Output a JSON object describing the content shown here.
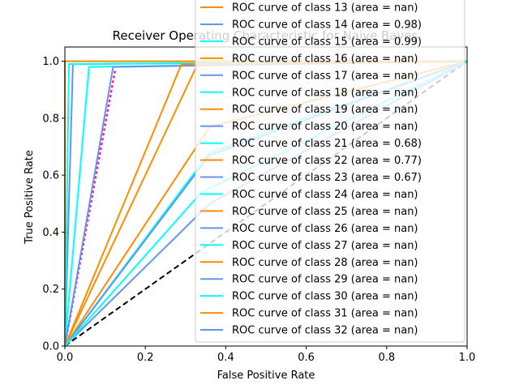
{
  "chart_data": {
    "type": "line",
    "title": "Receiver Operating Characteristic for Naive Bayes",
    "xlabel": "False Positive Rate",
    "ylabel": "True Positive Rate",
    "xlim": [
      0.0,
      1.0
    ],
    "ylim": [
      0.0,
      1.05
    ],
    "x_ticks": [
      "0.0",
      "0.2",
      "0.4",
      "0.6",
      "0.8",
      "1.0"
    ],
    "y_ticks": [
      "0.0",
      "0.2",
      "0.4",
      "0.6",
      "0.8",
      "1.0"
    ],
    "legend_position": "right, overlapping plot",
    "colors": {
      "aqua": "#00ffff",
      "darkorange": "#ff8c00",
      "cornflowerblue": "#6495ed",
      "deeppink": "#ff1493",
      "navy": "#000080"
    },
    "series": [
      {
        "color": "#000000",
        "dashed": true,
        "x": [
          0,
          1
        ],
        "y": [
          0,
          1
        ]
      },
      {
        "color": "#ff1493",
        "dotted": true,
        "x": [
          0.0,
          0.125
        ],
        "y": [
          0.0,
          0.97
        ]
      },
      {
        "color": "#00ffff",
        "x": [
          0.0,
          0.0,
          1.0
        ],
        "y": [
          0.0,
          1.0,
          1.0
        ]
      },
      {
        "color": "#ff8c00",
        "x": [
          0.0,
          0.0,
          1.0
        ],
        "y": [
          0.0,
          1.0,
          1.0
        ]
      },
      {
        "color": "#6495ed",
        "x": [
          0.0,
          0.02,
          1.0
        ],
        "y": [
          0.0,
          0.99,
          1.0
        ]
      },
      {
        "color": "#00ffff",
        "x": [
          0.0,
          0.01,
          1.0
        ],
        "y": [
          0.0,
          0.99,
          1.0
        ]
      },
      {
        "color": "#00ffff",
        "x": [
          0.0,
          0.06,
          1.0
        ],
        "y": [
          0.0,
          0.98,
          1.0
        ]
      },
      {
        "color": "#6495ed",
        "x": [
          0.0,
          0.12,
          1.0
        ],
        "y": [
          0.0,
          0.98,
          1.0
        ]
      },
      {
        "color": "#ff8c00",
        "x": [
          0.0,
          0.29,
          1.0
        ],
        "y": [
          0.0,
          0.99,
          1.0
        ]
      },
      {
        "color": "#ff8c00",
        "x": [
          0.0,
          0.33,
          1.0
        ],
        "y": [
          0.0,
          0.99,
          1.0
        ]
      },
      {
        "color": "#6495ed",
        "x": [
          0.0,
          0.36,
          1.0
        ],
        "y": [
          0.0,
          0.5,
          1.0
        ]
      },
      {
        "color": "#ff8c00",
        "x": [
          0.0,
          0.36,
          1.0
        ],
        "y": [
          0.0,
          0.77,
          1.0
        ]
      },
      {
        "color": "#00ffff",
        "x": [
          0.0,
          0.36,
          1.0
        ],
        "y": [
          0.0,
          0.68,
          1.0
        ]
      },
      {
        "color": "#6495ed",
        "x": [
          0.0,
          0.36,
          1.0
        ],
        "y": [
          0.0,
          0.67,
          1.0
        ]
      },
      {
        "color": "#00ffff",
        "x": [
          0.0,
          0.34,
          1.0
        ],
        "y": [
          0.0,
          0.54,
          1.0
        ]
      }
    ],
    "legend": [
      {
        "label": "ROC curve of class 13 (area = nan)",
        "color": "#ff8c00"
      },
      {
        "label": "ROC curve of class 14 (area = 0.98)",
        "color": "#6495ed"
      },
      {
        "label": "ROC curve of class 15 (area = 0.99)",
        "color": "#00ffff"
      },
      {
        "label": "ROC curve of class 16 (area = nan)",
        "color": "#ff8c00"
      },
      {
        "label": "ROC curve of class 17 (area = nan)",
        "color": "#6495ed"
      },
      {
        "label": "ROC curve of class 18 (area = nan)",
        "color": "#00ffff"
      },
      {
        "label": "ROC curve of class 19 (area = nan)",
        "color": "#ff8c00"
      },
      {
        "label": "ROC curve of class 20 (area = nan)",
        "color": "#6495ed"
      },
      {
        "label": "ROC curve of class 21 (area = 0.68)",
        "color": "#00ffff"
      },
      {
        "label": "ROC curve of class 22 (area = 0.77)",
        "color": "#ff8c00"
      },
      {
        "label": "ROC curve of class 23 (area = 0.67)",
        "color": "#6495ed"
      },
      {
        "label": "ROC curve of class 24 (area = nan)",
        "color": "#00ffff"
      },
      {
        "label": "ROC curve of class 25 (area = nan)",
        "color": "#ff8c00"
      },
      {
        "label": "ROC curve of class 26 (area = nan)",
        "color": "#6495ed"
      },
      {
        "label": "ROC curve of class 27 (area = nan)",
        "color": "#00ffff"
      },
      {
        "label": "ROC curve of class 28 (area = nan)",
        "color": "#ff8c00"
      },
      {
        "label": "ROC curve of class 29 (area = nan)",
        "color": "#6495ed"
      },
      {
        "label": "ROC curve of class 30 (area = nan)",
        "color": "#00ffff"
      },
      {
        "label": "ROC curve of class 31 (area = nan)",
        "color": "#ff8c00"
      },
      {
        "label": "ROC curve of class 32 (area = nan)",
        "color": "#6495ed"
      }
    ]
  }
}
